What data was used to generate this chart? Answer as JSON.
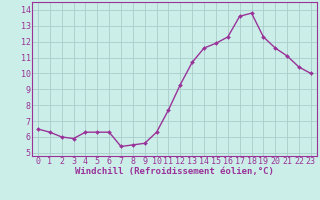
{
  "x": [
    0,
    1,
    2,
    3,
    4,
    5,
    6,
    7,
    8,
    9,
    10,
    11,
    12,
    13,
    14,
    15,
    16,
    17,
    18,
    19,
    20,
    21,
    22,
    23
  ],
  "y": [
    6.5,
    6.3,
    6.0,
    5.9,
    6.3,
    6.3,
    6.3,
    5.4,
    5.5,
    5.6,
    6.3,
    7.7,
    9.3,
    10.7,
    11.6,
    11.9,
    12.3,
    13.6,
    13.8,
    12.3,
    11.6,
    11.1,
    10.4,
    10.0
  ],
  "line_color": "#993399",
  "marker": "D",
  "marker_size": 2,
  "linewidth": 1.0,
  "bg_color": "#cceee8",
  "grid_color": "#aacccc",
  "xlabel": "Windchill (Refroidissement éolien,°C)",
  "xlabel_fontsize": 6.5,
  "ylabel_ticks": [
    5,
    6,
    7,
    8,
    9,
    10,
    11,
    12,
    13,
    14
  ],
  "xlim": [
    -0.5,
    23.5
  ],
  "ylim": [
    4.8,
    14.5
  ],
  "tick_fontsize": 6,
  "xtick_labels": [
    "0",
    "1",
    "2",
    "3",
    "4",
    "5",
    "6",
    "7",
    "8",
    "9",
    "10",
    "11",
    "12",
    "13",
    "14",
    "15",
    "16",
    "17",
    "18",
    "19",
    "20",
    "21",
    "22",
    "23"
  ]
}
